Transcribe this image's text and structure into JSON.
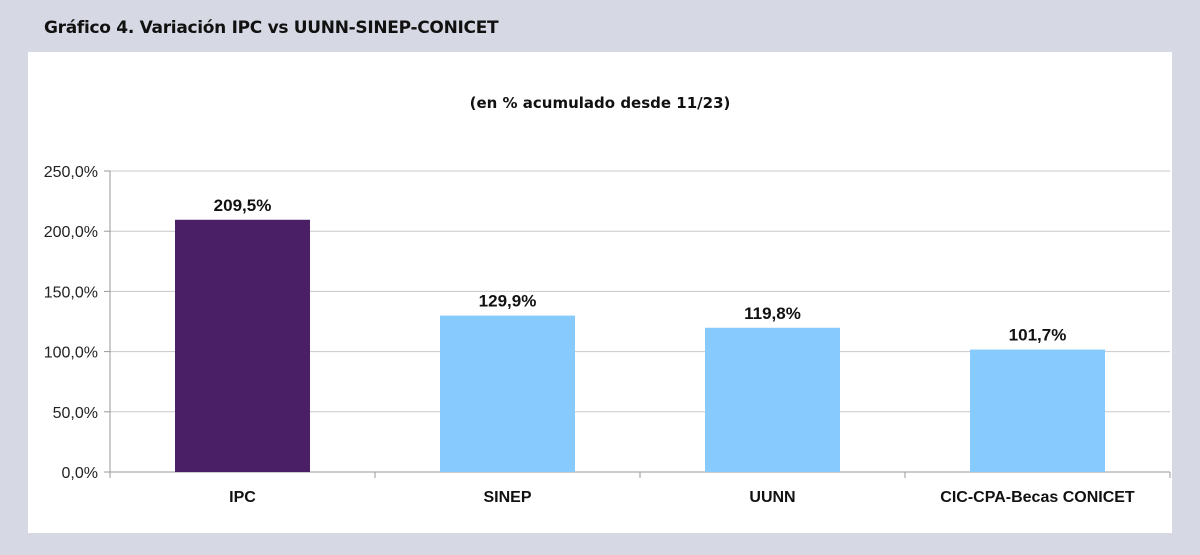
{
  "header": {
    "title": "Gráfico 4. Variación IPC vs UUNN-SINEP-CONICET"
  },
  "chart_data": {
    "type": "bar",
    "title": "",
    "subtitle": "(en % acumulado desde 11/23)",
    "categories": [
      "IPC",
      "SINEP",
      "UUNN",
      "CIC-CPA-Becas CONICET"
    ],
    "values": [
      209.5,
      129.9,
      119.8,
      101.7
    ],
    "value_labels": [
      "209,5%",
      "129,9%",
      "119,8%",
      "101,7%"
    ],
    "bar_colors": [
      "#4a1f66",
      "#87cafd",
      "#87cafd",
      "#87cafd"
    ],
    "ylim": [
      0,
      250
    ],
    "yticks": [
      0,
      50,
      100,
      150,
      200,
      250
    ],
    "ytick_labels": [
      "0,0%",
      "50,0%",
      "100,0%",
      "150,0%",
      "200,0%",
      "250,0%"
    ],
    "grid": true,
    "xlabel": "",
    "ylabel": ""
  }
}
